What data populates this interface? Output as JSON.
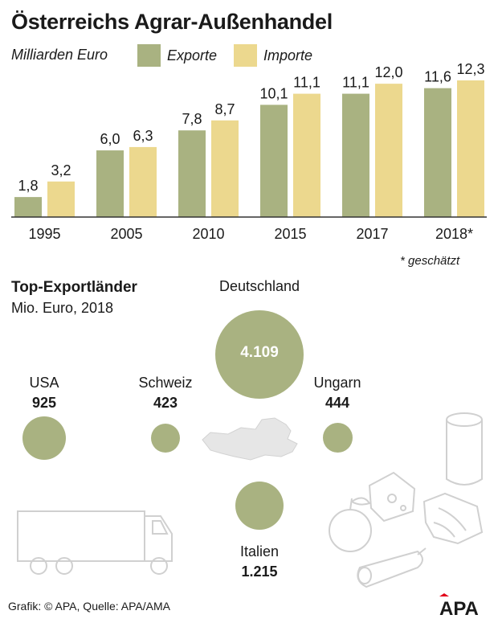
{
  "title": "Österreichs Agrar-Außenhandel",
  "unit": "Milliarden Euro",
  "colors": {
    "exports": "#a9b281",
    "imports": "#ecd88e",
    "axis": "#333333"
  },
  "chart_data": {
    "type": "bar",
    "title": "Österreichs Agrar-Außenhandel",
    "ylabel": "Milliarden Euro",
    "categories": [
      "1995",
      "2005",
      "2010",
      "2015",
      "2017",
      "2018*"
    ],
    "series": [
      {
        "name": "Exporte",
        "values": [
          1.8,
          6.0,
          7.8,
          10.1,
          11.1,
          11.6
        ],
        "labels": [
          "1,8",
          "6,0",
          "7,8",
          "10,1",
          "11,1",
          "11,6"
        ]
      },
      {
        "name": "Importe",
        "values": [
          3.2,
          6.3,
          8.7,
          11.1,
          12.0,
          12.3
        ],
        "labels": [
          "3,2",
          "6,3",
          "8,7",
          "11,1",
          "12,0",
          "12,3"
        ]
      }
    ],
    "ylim": [
      0,
      12.3
    ],
    "legend": "top",
    "grid": false
  },
  "footnote": "* geschätzt",
  "exports": {
    "title": "Top-Exportländer",
    "subtitle": "Mio. Euro, 2018",
    "countries": [
      {
        "name": "Deutschland",
        "value": "4.109",
        "amount": 4109
      },
      {
        "name": "USA",
        "value": "925",
        "amount": 925
      },
      {
        "name": "Schweiz",
        "value": "423",
        "amount": 423
      },
      {
        "name": "Ungarn",
        "value": "444",
        "amount": 444
      },
      {
        "name": "Italien",
        "value": "1.215",
        "amount": 1215
      }
    ]
  },
  "illustrations": [
    "austria-map-icon",
    "truck-icon",
    "milk-carton-icon",
    "cheese-icon",
    "meat-icon",
    "apple-icon",
    "sausage-icon"
  ],
  "source": "Grafik: © APA, Quelle: APA/AMA",
  "logo": "APA"
}
